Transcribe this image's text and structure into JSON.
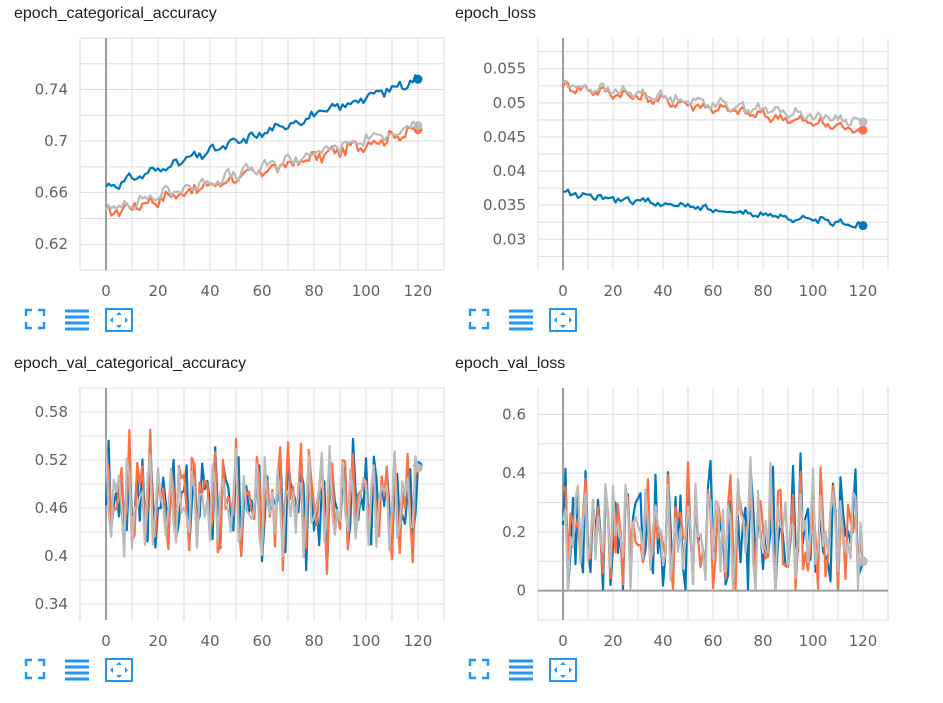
{
  "colors": {
    "series_a": "#0077bb",
    "series_b": "#ff7043",
    "series_c": "#bbbbbb",
    "grid": "#dddddd",
    "axis": "#9e9e9e",
    "tool": "#2196f3"
  },
  "toolbar_icons": [
    "fullscreen-icon",
    "lines-icon",
    "fit-domain-icon"
  ],
  "chart_data": [
    {
      "type": "line",
      "title": "epoch_categorical_accuracy",
      "xlim": [
        -10,
        130
      ],
      "ylim": [
        0.6,
        0.78
      ],
      "xticks": [
        0,
        20,
        40,
        60,
        80,
        100,
        120
      ],
      "yticks": [
        0.62,
        0.66,
        0.7,
        0.74
      ],
      "ytick_labels": [
        "0.62",
        "0.66",
        "0.7",
        "0.74"
      ],
      "series": [
        {
          "color_key": "series_b",
          "start": 0.644,
          "end": 0.709,
          "noise": 0.004,
          "phase": 1.3
        },
        {
          "color_key": "series_c",
          "start": 0.647,
          "end": 0.712,
          "noise": 0.004,
          "phase": 2.1
        },
        {
          "color_key": "series_a",
          "start": 0.664,
          "end": 0.748,
          "noise": 0.003,
          "phase": 0.4
        }
      ]
    },
    {
      "type": "line",
      "title": "epoch_loss",
      "xlim": [
        -10,
        130
      ],
      "ylim": [
        0.0255,
        0.0595
      ],
      "xticks": [
        0,
        20,
        40,
        60,
        80,
        100,
        120
      ],
      "yticks": [
        0.03,
        0.035,
        0.04,
        0.045,
        0.05,
        0.055
      ],
      "ytick_labels": [
        "0.03",
        "0.035",
        "0.04",
        "0.045",
        "0.05",
        "0.055"
      ],
      "series": [
        {
          "color_key": "series_b",
          "start": 0.0525,
          "end": 0.046,
          "noise": 0.0006,
          "phase": 0.9
        },
        {
          "color_key": "series_c",
          "start": 0.0527,
          "end": 0.0472,
          "noise": 0.0006,
          "phase": 1.7
        },
        {
          "color_key": "series_a",
          "start": 0.0368,
          "end": 0.032,
          "noise": 0.0004,
          "phase": 0.2
        }
      ]
    },
    {
      "type": "line",
      "title": "epoch_val_categorical_accuracy",
      "xlim": [
        -10,
        130
      ],
      "ylim": [
        0.32,
        0.61
      ],
      "xticks": [
        0,
        20,
        40,
        60,
        80,
        100,
        120
      ],
      "yticks": [
        0.34,
        0.4,
        0.46,
        0.52,
        0.58
      ],
      "ytick_labels": [
        "0.34",
        "0.4",
        "0.46",
        "0.52",
        "0.58"
      ],
      "series": [
        {
          "color_key": "series_a",
          "base": 0.47,
          "amp": 0.07,
          "noise": 0.025,
          "phase": 0.0,
          "end": 0.513
        },
        {
          "color_key": "series_b",
          "base": 0.47,
          "amp": 0.07,
          "noise": 0.028,
          "phase": 0.7,
          "end": 0.51
        },
        {
          "color_key": "series_c",
          "base": 0.465,
          "amp": 0.065,
          "noise": 0.02,
          "phase": 1.4,
          "end": 0.51
        }
      ]
    },
    {
      "type": "line",
      "title": "epoch_val_loss",
      "xlim": [
        -10,
        130
      ],
      "ylim": [
        -0.1,
        0.69
      ],
      "xticks": [
        0,
        20,
        40,
        60,
        80,
        100,
        120
      ],
      "yticks": [
        0,
        0.2,
        0.4,
        0.6
      ],
      "ytick_labels": [
        "0",
        "0.2",
        "0.4",
        "0.6"
      ],
      "series": [
        {
          "color_key": "series_a",
          "base": 0.2,
          "amp": 0.2,
          "noise": 0.12,
          "phase": 0.0,
          "end": 0.1
        },
        {
          "color_key": "series_b",
          "base": 0.2,
          "amp": 0.2,
          "noise": 0.11,
          "phase": 0.3,
          "end": 0.1
        },
        {
          "color_key": "series_c",
          "base": 0.2,
          "amp": 0.19,
          "noise": 0.1,
          "phase": 0.6,
          "end": 0.1
        }
      ]
    }
  ]
}
